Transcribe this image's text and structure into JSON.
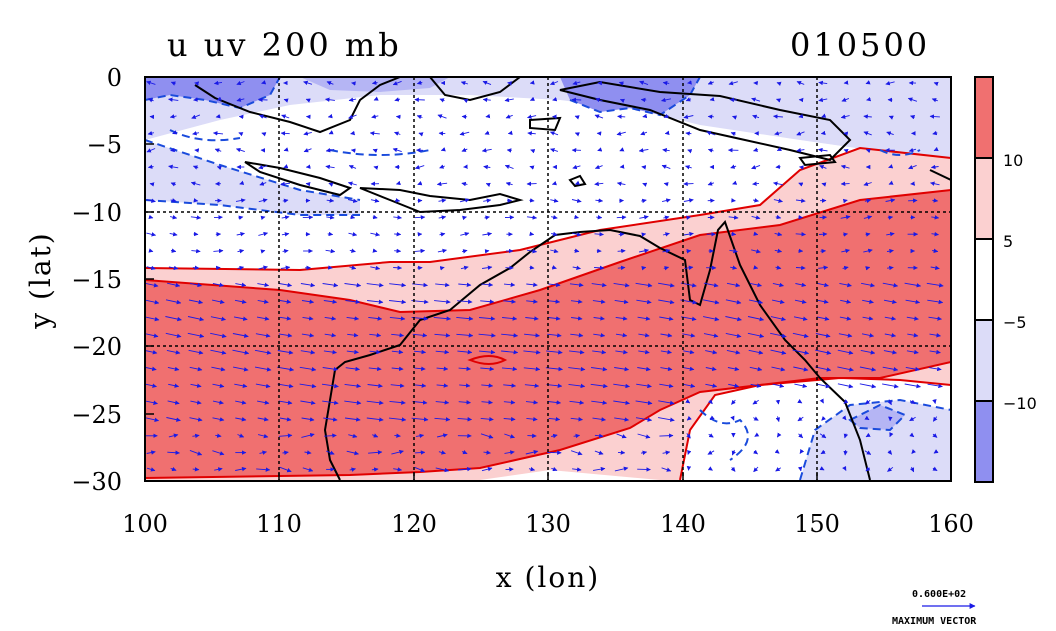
{
  "title_left": "u uv 200 mb",
  "title_right": "010500",
  "chart_data": {
    "type": "heatmap",
    "xlabel": "x (lon)",
    "ylabel": "y (lat)",
    "xlim": [
      100,
      160
    ],
    "ylim": [
      -30,
      0
    ],
    "x_ticks": [
      "100",
      "110",
      "120",
      "130",
      "140",
      "150",
      "160"
    ],
    "y_ticks": [
      "0",
      "−5",
      "−10",
      "−15",
      "−20",
      "−25",
      "−30"
    ],
    "grid": true,
    "colorbar": {
      "levels": [
        "10",
        "5",
        "−5",
        "−10"
      ],
      "colors": [
        "#f07070",
        "#fbd0d0",
        "#ffffff",
        "#dcdcf8",
        "#8f8ff0"
      ]
    },
    "reference_vector": {
      "value": "0.600E+02",
      "label": "MAXIMUM VECTOR"
    },
    "vector_color": "#1a1ae6",
    "contour_positive_color": "#e00000",
    "contour_negative_color": "#1a4bdc",
    "coastline_color": "#000000"
  }
}
